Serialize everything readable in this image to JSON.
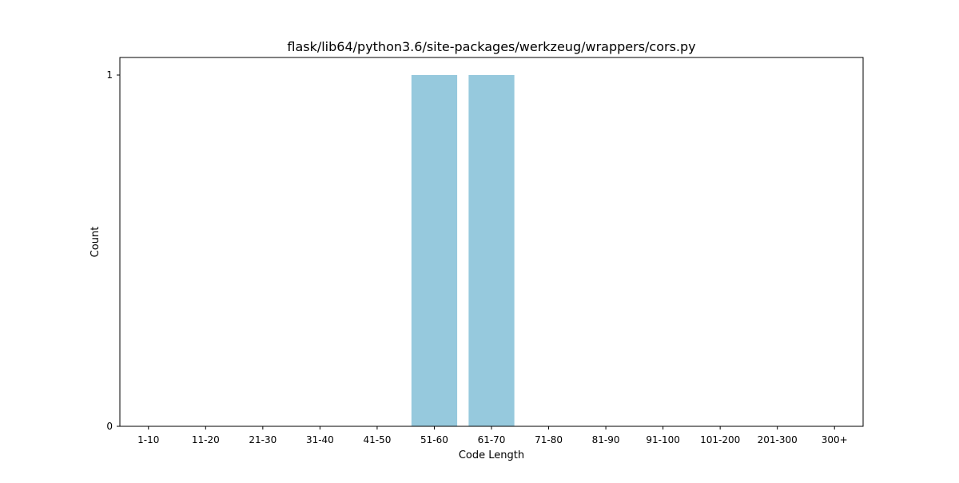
{
  "chart_data": {
    "type": "bar",
    "title": "flask/lib64/python3.6/site-packages/werkzeug/wrappers/cors.py",
    "xlabel": "Code Length",
    "ylabel": "Count",
    "categories": [
      "1-10",
      "11-20",
      "21-30",
      "31-40",
      "41-50",
      "51-60",
      "61-70",
      "71-80",
      "81-90",
      "91-100",
      "101-200",
      "201-300",
      "300+"
    ],
    "values": [
      0,
      0,
      0,
      0,
      0,
      1,
      1,
      0,
      0,
      0,
      0,
      0,
      0
    ],
    "ylim": [
      0,
      1.05
    ],
    "yticks": [
      0,
      1
    ],
    "grid": false,
    "bar_color": "#96c9dd"
  }
}
